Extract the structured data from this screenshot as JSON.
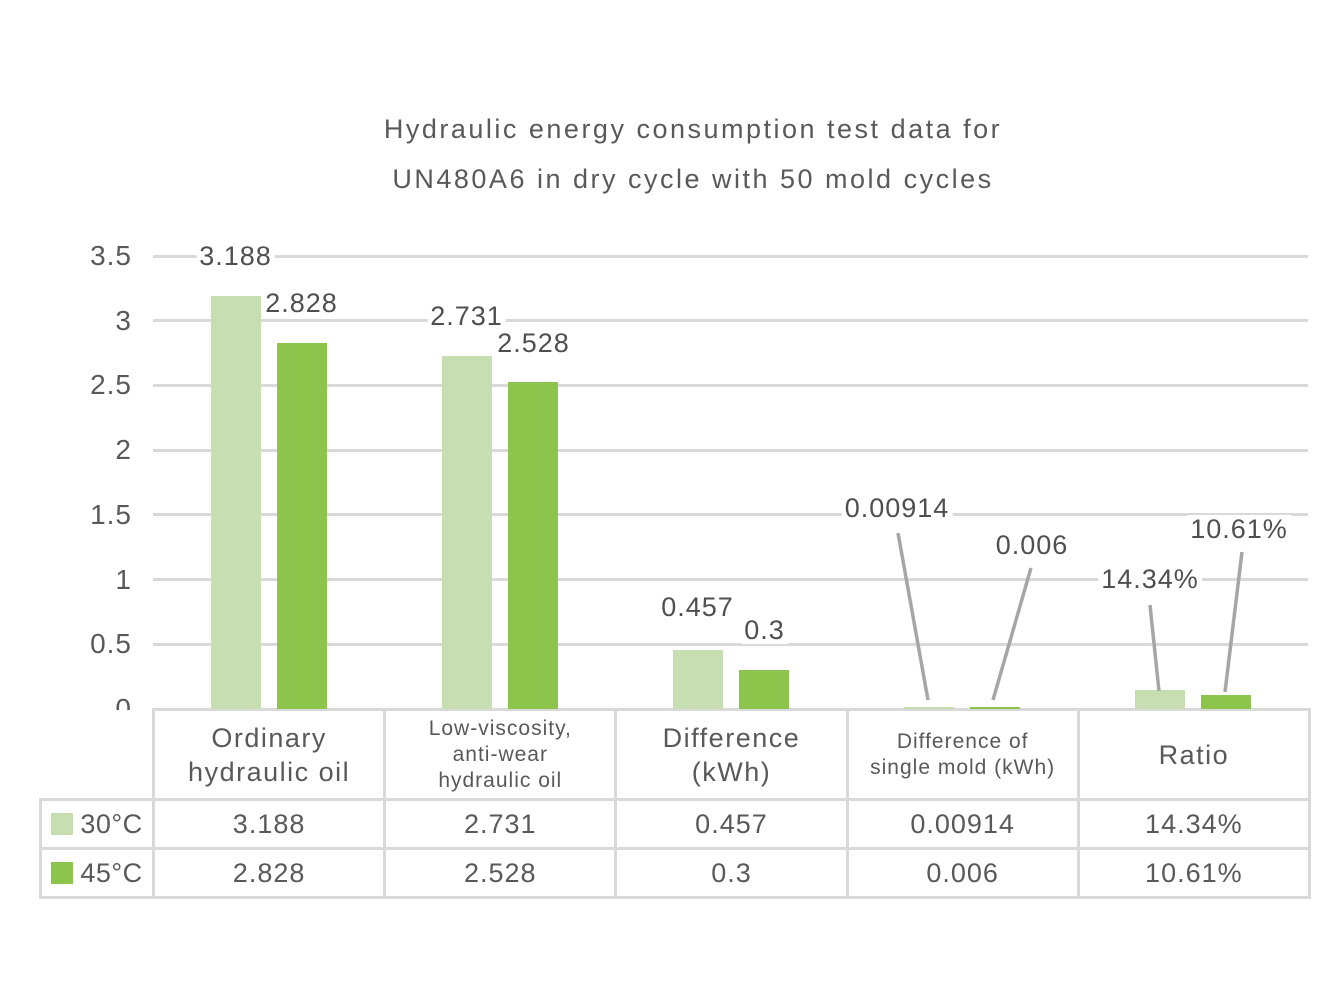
{
  "title": {
    "line1": "Hydraulic energy consumption test data for",
    "line2": "UN480A6 in dry cycle with 50 mold cycles"
  },
  "chart_data": {
    "type": "bar",
    "title": "Hydraulic energy consumption test data for UN480A6 in dry cycle with 50 mold cycles",
    "categories": [
      "Ordinary hydraulic oil",
      "Low-viscosity, anti-wear hydraulic oil",
      "Difference (kWh)",
      "Difference of single mold (kWh)",
      "Ratio"
    ],
    "series": [
      {
        "name": "30°C",
        "color": "#c7ddb2",
        "values": [
          3.188,
          2.731,
          0.457,
          0.00914,
          0.1434
        ],
        "labels": [
          "3.188",
          "2.731",
          "0.457",
          "0.00914",
          "14.34%"
        ]
      },
      {
        "name": "45°C",
        "color": "#8cc44c",
        "values": [
          2.828,
          2.528,
          0.3,
          0.006,
          0.1061
        ],
        "labels": [
          "2.828",
          "2.528",
          "0.3",
          "0.006",
          "10.61%"
        ]
      }
    ],
    "ylim": [
      0,
      3.5
    ],
    "yticks": [
      "0",
      "0.5",
      "1",
      "1.5",
      "2",
      "2.5",
      "3",
      "3.5"
    ],
    "grid": true,
    "legend_position": "table rows below chart"
  },
  "table": {
    "headers": [
      "Ordinary\nhydraulic oil",
      "Low-viscosity,\nanti-wear\nhydraulic oil",
      "Difference\n(kWh)",
      "Difference of\nsingle mold (kWh)",
      "Ratio"
    ],
    "rows": [
      {
        "legend": "30°C",
        "swatch": "#c7ddb2",
        "values": [
          "3.188",
          "2.731",
          "0.457",
          "0.00914",
          "14.34%"
        ]
      },
      {
        "legend": "45°C",
        "swatch": "#8cc44c",
        "values": [
          "2.828",
          "2.528",
          "0.3",
          "0.006",
          "10.61%"
        ]
      }
    ]
  },
  "colors": {
    "grid": "#d9d9d9",
    "table_border": "#d9d9d9",
    "leader_line": "#a6a6a6",
    "text": "#595959",
    "series_30c": "#c7ddb2",
    "series_45c": "#8cc44c"
  }
}
